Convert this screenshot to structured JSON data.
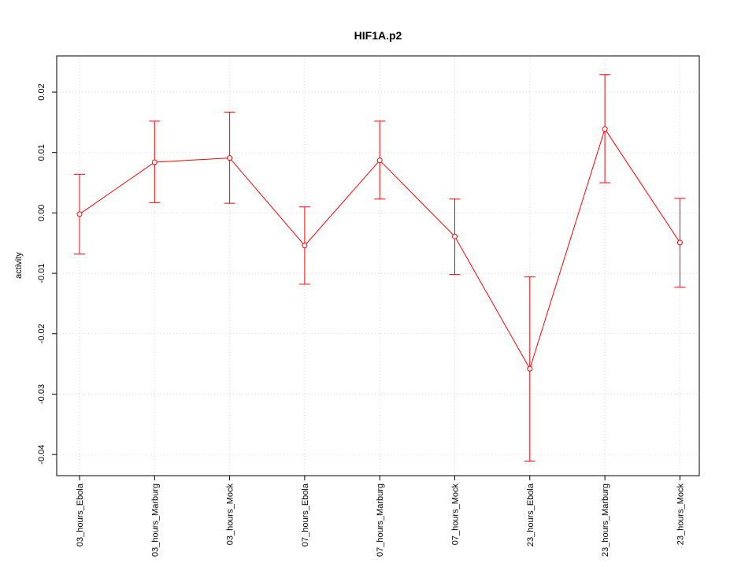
{
  "chart_data": {
    "type": "line",
    "title": "HIF1A.p2",
    "xlabel": "",
    "ylabel": "activity",
    "categories": [
      "03_hours_Ebola",
      "03_hours_Marburg",
      "03_hours_Mock",
      "07_hours_Ebola",
      "07_hours_Marburg",
      "07_hours_Mock",
      "23_hours_Ebola",
      "23_hours_Marburg",
      "23_hours_Mock"
    ],
    "series": [
      {
        "values": [
          -0.0002,
          0.0084,
          0.0091,
          -0.0054,
          0.0087,
          -0.0039,
          -0.0258,
          0.0139,
          -0.0049
        ],
        "upper": [
          0.0064,
          0.0152,
          0.0167,
          0.001,
          0.0152,
          0.0023,
          -0.0106,
          0.0229,
          0.0024
        ],
        "lower": [
          -0.0068,
          0.0017,
          0.0016,
          -0.0118,
          0.0023,
          -0.0102,
          -0.0411,
          0.005,
          -0.0123
        ]
      }
    ],
    "ylim": [
      -0.0435,
      0.026
    ],
    "yticks": [
      -0.04,
      -0.03,
      -0.02,
      -0.01,
      0.0,
      0.01,
      0.02
    ],
    "ytick_labels": [
      "-0.04",
      "-0.03",
      "-0.02",
      "-0.01",
      "0.00",
      "0.01",
      "0.02"
    ],
    "grid": true,
    "line_color": "#ff0000",
    "grid_color": "#d3d3d3"
  }
}
